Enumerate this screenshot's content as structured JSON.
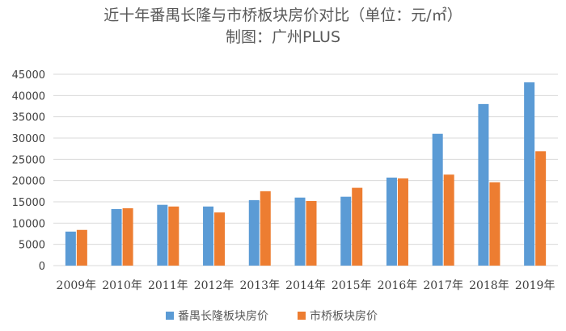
{
  "chart_data": {
    "type": "bar",
    "title": "近十年番禺长隆与市桥板块房价对比（单位：元/㎡）",
    "subtitle": "制图：广州PLUS",
    "categories": [
      "2009年",
      "2010年",
      "2011年",
      "2012年",
      "2013年",
      "2014年",
      "2015年",
      "2016年",
      "2017年",
      "2018年",
      "2019年"
    ],
    "series": [
      {
        "name": "番禺长隆板块房价",
        "color": "#5B9BD5",
        "values": [
          8000,
          13300,
          14300,
          13900,
          15400,
          16000,
          16200,
          20700,
          31000,
          38000,
          43100
        ]
      },
      {
        "name": "市桥板块房价",
        "color": "#ED7D31",
        "values": [
          8400,
          13500,
          13900,
          12500,
          17500,
          15200,
          18300,
          20500,
          21400,
          19600,
          26900
        ]
      }
    ],
    "ylim": [
      0,
      45000
    ],
    "yticks": [
      0,
      5000,
      10000,
      15000,
      20000,
      25000,
      30000,
      35000,
      40000,
      45000
    ],
    "grid": true,
    "legend_position": "bottom",
    "xlabel": "",
    "ylabel": ""
  }
}
